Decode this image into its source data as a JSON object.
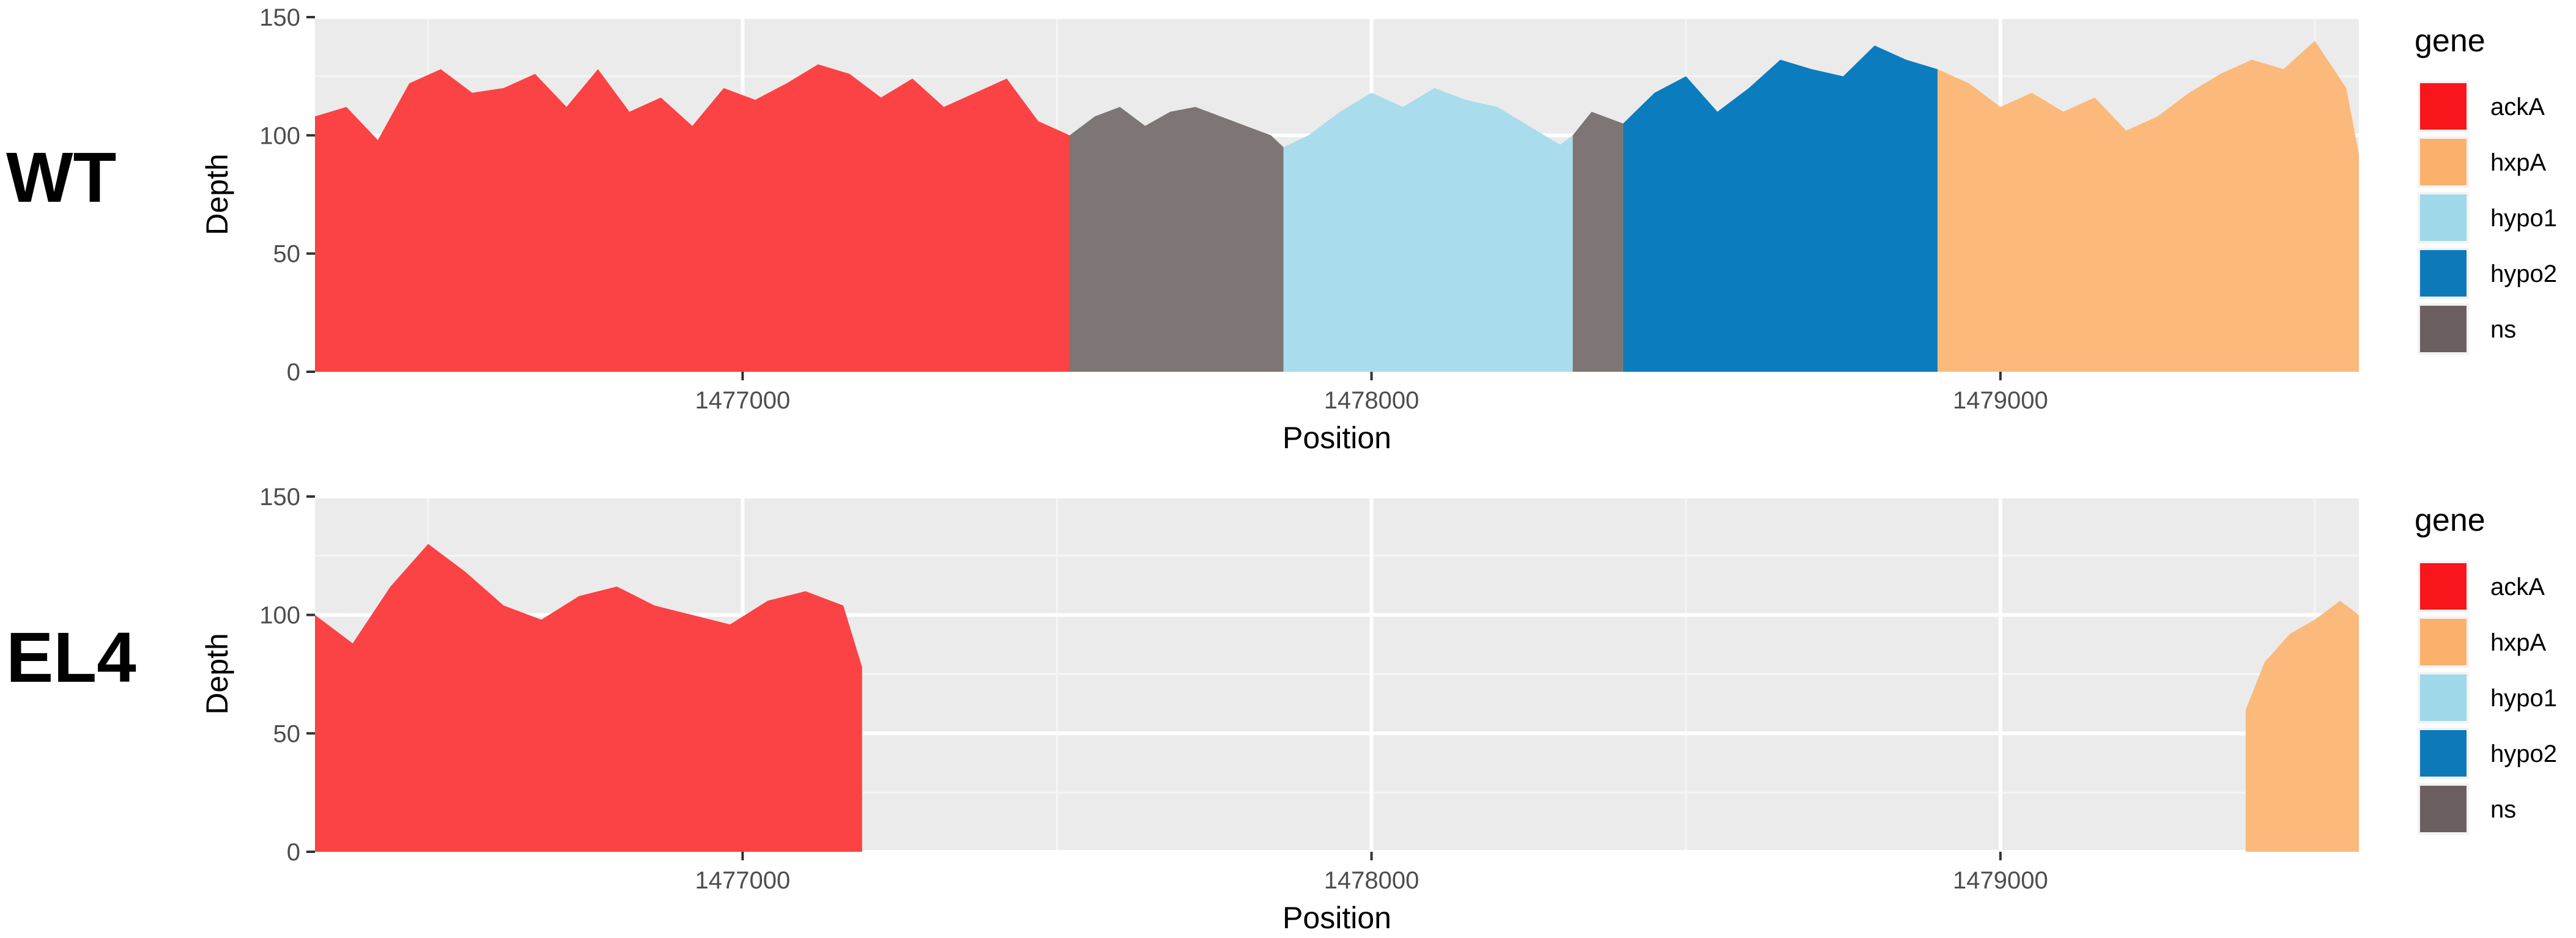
{
  "colors": {
    "panel_background": "#ebebeb",
    "grid_major": "#ffffff",
    "grid_minor": "#f5f5f5",
    "tick_text": "#4d4d4d",
    "tick_mark": "#333333"
  },
  "chart_data": [
    {
      "type": "area",
      "panel_label": "WT",
      "xlabel": "Position",
      "ylabel": "Depth",
      "xlim": [
        1476320,
        1479570
      ],
      "ylim": [
        0,
        150
      ],
      "x_ticks": [
        1477000,
        1478000,
        1479000
      ],
      "x_tick_labels": [
        "1477000",
        "1478000",
        "1479000"
      ],
      "y_ticks": [
        0,
        50,
        100,
        150
      ],
      "y_tick_labels": [
        "0",
        "50",
        "100",
        "150"
      ],
      "grid": true,
      "legend": {
        "title": "gene",
        "placement": "right",
        "items": [
          {
            "label": "ackA",
            "color": "#f8161c"
          },
          {
            "label": "hxpA",
            "color": "#fbb06c"
          },
          {
            "label": "hypo1",
            "color": "#9ed8e9"
          },
          {
            "label": "hypo2",
            "color": "#0d79b9"
          },
          {
            "label": "ns",
            "color": "#6b5f5f"
          }
        ]
      },
      "series": [
        {
          "gene": "ackA",
          "color": "#fb4244",
          "x": [
            1476320,
            1476370,
            1476420,
            1476470,
            1476520,
            1476570,
            1476620,
            1476670,
            1476720,
            1476770,
            1476820,
            1476870,
            1476920,
            1476970,
            1477020,
            1477070,
            1477120,
            1477170,
            1477220,
            1477270,
            1477320,
            1477370,
            1477420,
            1477470,
            1477520
          ],
          "y": [
            108,
            112,
            98,
            122,
            128,
            118,
            120,
            126,
            112,
            128,
            110,
            116,
            104,
            120,
            115,
            122,
            130,
            126,
            116,
            124,
            112,
            118,
            124,
            106,
            100
          ]
        },
        {
          "gene": "ns",
          "color": "#7e7575",
          "x": [
            1477520,
            1477560,
            1477600,
            1477640,
            1477680,
            1477720,
            1477760,
            1477800,
            1477840,
            1477860
          ],
          "y": [
            100,
            108,
            112,
            104,
            110,
            112,
            108,
            104,
            100,
            95
          ]
        },
        {
          "gene": "hypo1",
          "color": "#a9dcec",
          "x": [
            1477860,
            1477900,
            1477950,
            1478000,
            1478050,
            1478100,
            1478150,
            1478200,
            1478250,
            1478300,
            1478320
          ],
          "y": [
            95,
            100,
            110,
            118,
            112,
            120,
            115,
            112,
            104,
            96,
            100
          ]
        },
        {
          "gene": "ns",
          "color": "#7e7575",
          "x": [
            1478320,
            1478350,
            1478400
          ],
          "y": [
            100,
            110,
            105
          ]
        },
        {
          "gene": "hypo2",
          "color": "#0b7cbd",
          "x": [
            1478400,
            1478450,
            1478500,
            1478550,
            1478600,
            1478650,
            1478700,
            1478750,
            1478800,
            1478850,
            1478900
          ],
          "y": [
            105,
            118,
            125,
            110,
            120,
            132,
            128,
            125,
            138,
            132,
            128
          ]
        },
        {
          "gene": "hxpA",
          "color": "#fbb97b",
          "x": [
            1478900,
            1478950,
            1479000,
            1479050,
            1479100,
            1479150,
            1479200,
            1479250,
            1479300,
            1479350,
            1479400,
            1479450,
            1479500,
            1479550,
            1479570
          ],
          "y": [
            128,
            122,
            112,
            118,
            110,
            116,
            102,
            108,
            118,
            126,
            132,
            128,
            140,
            120,
            92
          ]
        }
      ]
    },
    {
      "type": "area",
      "panel_label": "EL4",
      "xlabel": "Position",
      "ylabel": "Depth",
      "xlim": [
        1476320,
        1479570
      ],
      "ylim": [
        0,
        150
      ],
      "x_ticks": [
        1477000,
        1478000,
        1479000
      ],
      "x_tick_labels": [
        "1477000",
        "1478000",
        "1479000"
      ],
      "y_ticks": [
        0,
        50,
        100,
        150
      ],
      "y_tick_labels": [
        "0",
        "50",
        "100",
        "150"
      ],
      "grid": true,
      "legend": {
        "title": "gene",
        "placement": "right",
        "items": [
          {
            "label": "ackA",
            "color": "#f8161c"
          },
          {
            "label": "hxpA",
            "color": "#fbb06c"
          },
          {
            "label": "hypo1",
            "color": "#9ed8e9"
          },
          {
            "label": "hypo2",
            "color": "#0d79b9"
          },
          {
            "label": "ns",
            "color": "#6b5f5f"
          }
        ]
      },
      "series": [
        {
          "gene": "ackA",
          "color": "#fb4244",
          "x": [
            1476320,
            1476380,
            1476440,
            1476500,
            1476560,
            1476620,
            1476680,
            1476740,
            1476800,
            1476860,
            1476920,
            1476980,
            1477040,
            1477100,
            1477160,
            1477190
          ],
          "y": [
            100,
            88,
            112,
            130,
            118,
            104,
            98,
            108,
            112,
            104,
            100,
            96,
            106,
            110,
            104,
            78
          ]
        },
        {
          "gene": "hxpA",
          "color": "#fbb97b",
          "x": [
            1479390,
            1479420,
            1479460,
            1479500,
            1479540,
            1479570
          ],
          "y": [
            60,
            80,
            92,
            98,
            106,
            100
          ]
        }
      ]
    }
  ]
}
